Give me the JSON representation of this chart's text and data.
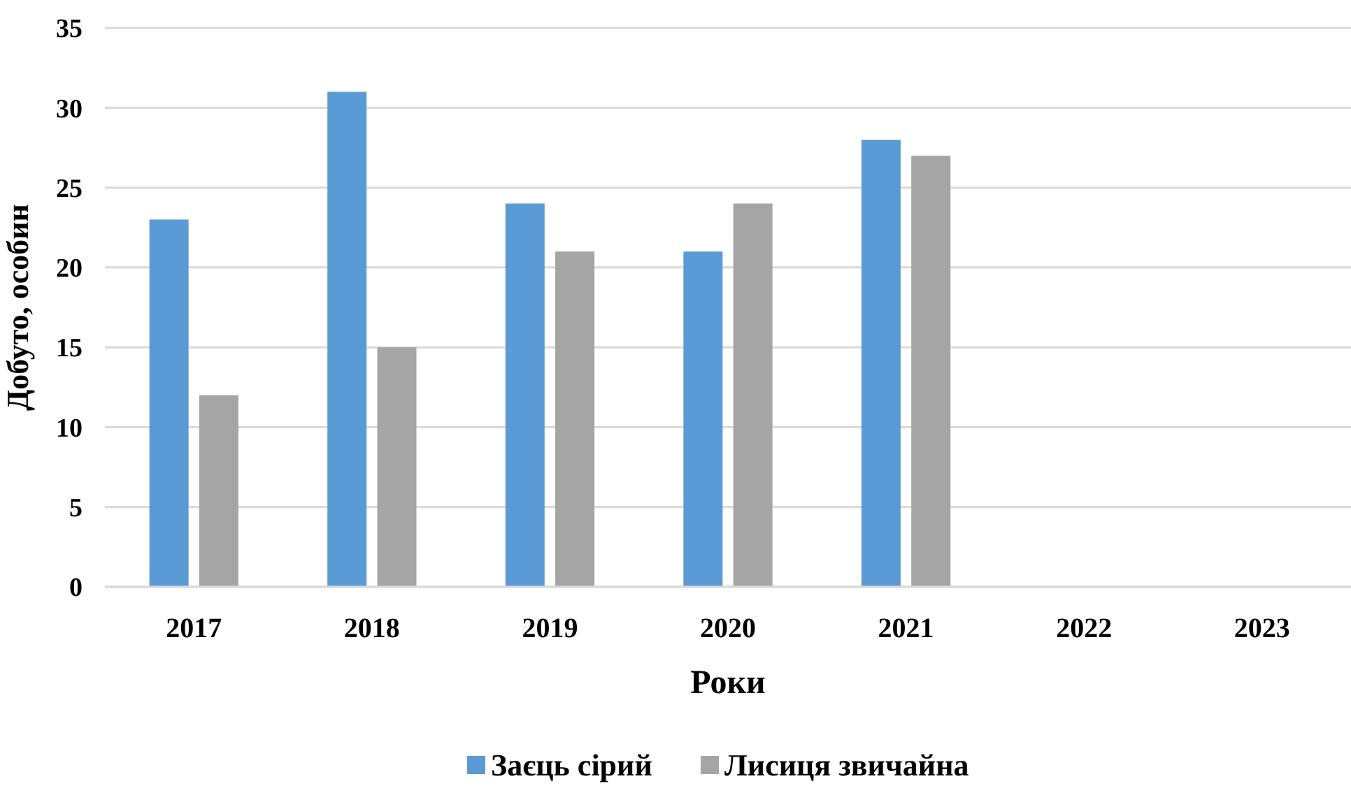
{
  "chart_data": {
    "type": "bar",
    "xlabel": "Роки",
    "ylabel": "Добуто, особин",
    "categories": [
      "2017",
      "2018",
      "2019",
      "2020",
      "2021",
      "2022",
      "2023"
    ],
    "series": [
      {
        "name": "Заєць сірий",
        "color": "#5b9bd5",
        "values": [
          23,
          31,
          24,
          21,
          28,
          null,
          null
        ]
      },
      {
        "name": "Лисиця звичайна",
        "color": "#a5a5a5",
        "values": [
          12,
          15,
          21,
          24,
          27,
          null,
          null
        ]
      }
    ],
    "ylim": [
      0,
      35
    ],
    "yticks": [
      0,
      5,
      10,
      15,
      20,
      25,
      30,
      35
    ],
    "grid": "y",
    "legend": "bottom"
  }
}
